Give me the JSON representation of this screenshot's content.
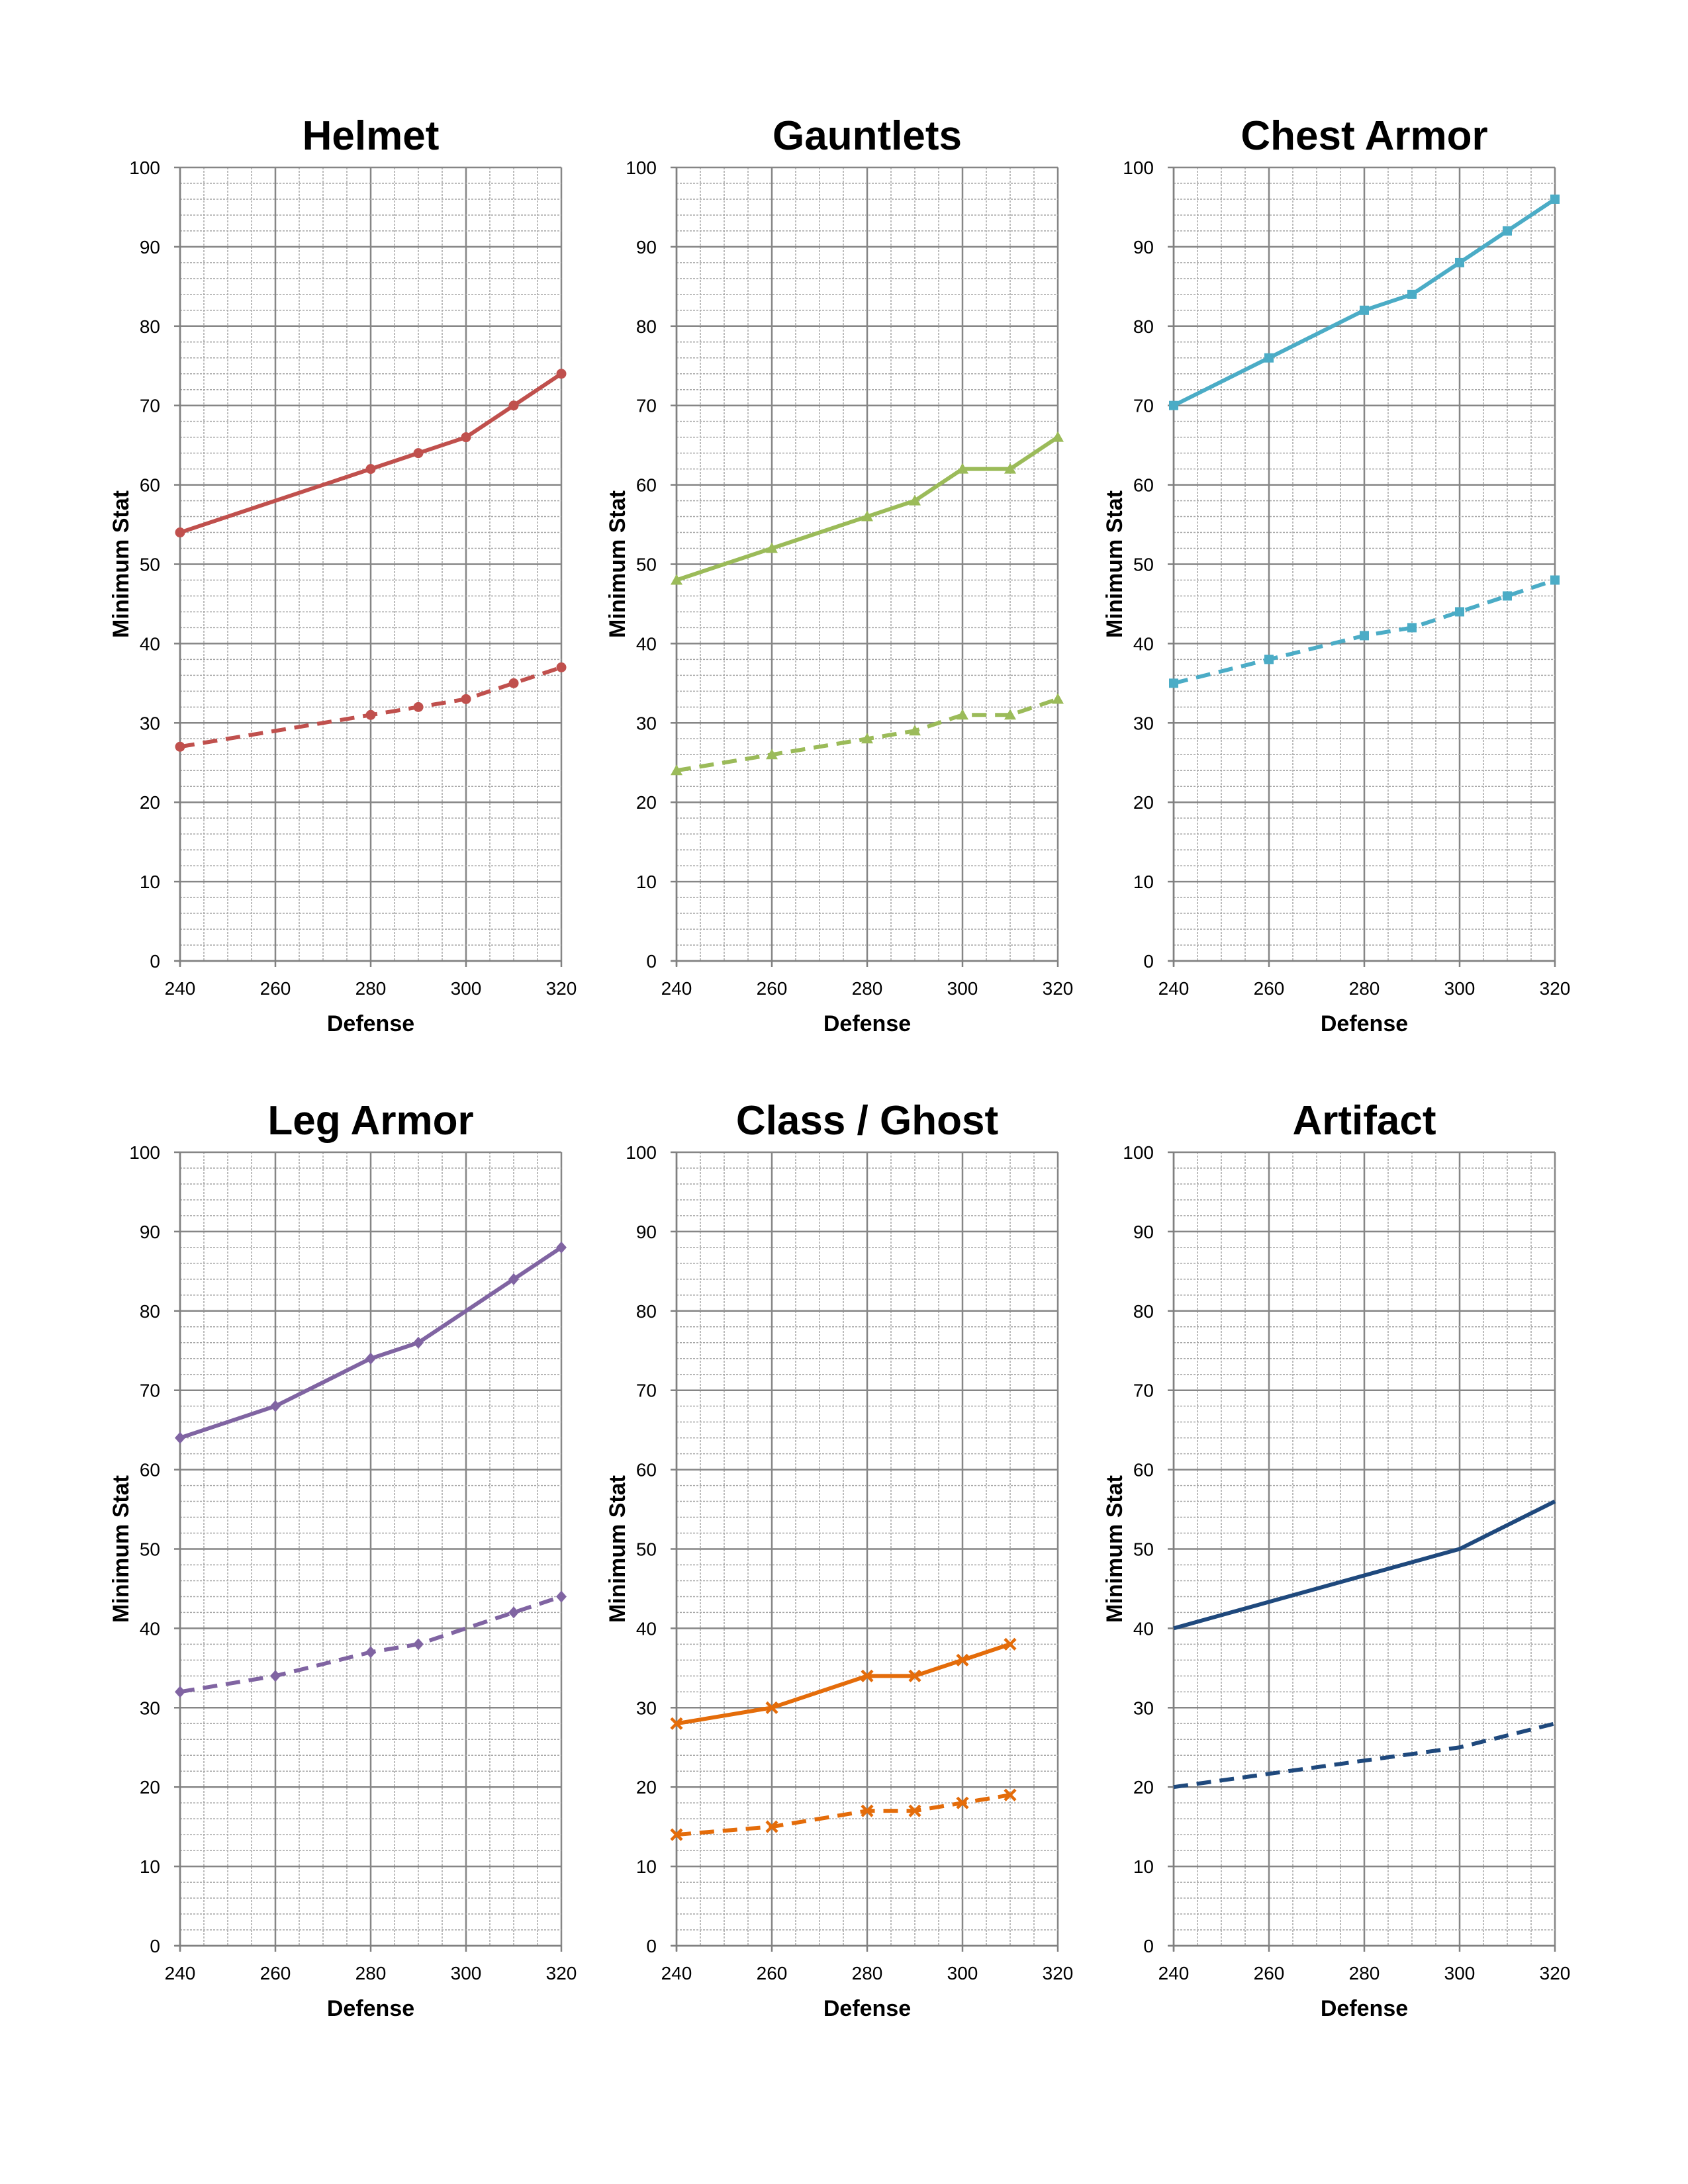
{
  "chart_data": [
    {
      "type": "line",
      "title": "Helmet",
      "xlabel": "Defense",
      "ylabel": "Minimum Stat",
      "xlim": [
        240,
        320
      ],
      "ylim": [
        0,
        100
      ],
      "xticks": [
        240,
        260,
        280,
        300,
        320
      ],
      "yticks": [
        0,
        10,
        20,
        30,
        40,
        50,
        60,
        70,
        80,
        90,
        100
      ],
      "grid": true,
      "color": "#C0504D",
      "marker": "circle",
      "series": [
        {
          "style": "solid",
          "x": [
            240,
            280,
            290,
            300,
            310,
            320
          ],
          "y": [
            54,
            62,
            64,
            66,
            70,
            74
          ]
        },
        {
          "style": "dashed",
          "x": [
            240,
            280,
            290,
            300,
            310,
            320
          ],
          "y": [
            27,
            31,
            32,
            33,
            35,
            37
          ]
        }
      ]
    },
    {
      "type": "line",
      "title": "Gauntlets",
      "xlabel": "Defense",
      "ylabel": "Minimum Stat",
      "xlim": [
        240,
        320
      ],
      "ylim": [
        0,
        100
      ],
      "xticks": [
        240,
        260,
        280,
        300,
        320
      ],
      "yticks": [
        0,
        10,
        20,
        30,
        40,
        50,
        60,
        70,
        80,
        90,
        100
      ],
      "grid": true,
      "color": "#9BBB59",
      "marker": "triangle",
      "series": [
        {
          "style": "solid",
          "x": [
            240,
            260,
            280,
            290,
            300,
            310,
            320
          ],
          "y": [
            48,
            52,
            56,
            58,
            62,
            62,
            66
          ]
        },
        {
          "style": "dashed",
          "x": [
            240,
            260,
            280,
            290,
            300,
            310,
            320
          ],
          "y": [
            24,
            26,
            28,
            29,
            31,
            31,
            33
          ]
        }
      ]
    },
    {
      "type": "line",
      "title": "Chest Armor",
      "xlabel": "Defense",
      "ylabel": "Minimum Stat",
      "xlim": [
        240,
        320
      ],
      "ylim": [
        0,
        100
      ],
      "xticks": [
        240,
        260,
        280,
        300,
        320
      ],
      "yticks": [
        0,
        10,
        20,
        30,
        40,
        50,
        60,
        70,
        80,
        90,
        100
      ],
      "grid": true,
      "color": "#4BACC6",
      "marker": "square",
      "series": [
        {
          "style": "solid",
          "x": [
            240,
            260,
            280,
            290,
            300,
            310,
            320
          ],
          "y": [
            70,
            76,
            82,
            84,
            88,
            92,
            96
          ]
        },
        {
          "style": "dashed",
          "x": [
            240,
            260,
            280,
            290,
            300,
            310,
            320
          ],
          "y": [
            35,
            38,
            41,
            42,
            44,
            46,
            48
          ]
        }
      ]
    },
    {
      "type": "line",
      "title": "Leg Armor",
      "xlabel": "Defense",
      "ylabel": "Minimum Stat",
      "xlim": [
        240,
        320
      ],
      "ylim": [
        0,
        100
      ],
      "xticks": [
        240,
        260,
        280,
        300,
        320
      ],
      "yticks": [
        0,
        10,
        20,
        30,
        40,
        50,
        60,
        70,
        80,
        90,
        100
      ],
      "grid": true,
      "color": "#8064A2",
      "marker": "diamond",
      "series": [
        {
          "style": "solid",
          "x": [
            240,
            260,
            280,
            290,
            310,
            320
          ],
          "y": [
            64,
            68,
            74,
            76,
            84,
            88
          ]
        },
        {
          "style": "dashed",
          "x": [
            240,
            260,
            280,
            290,
            310,
            320
          ],
          "y": [
            32,
            34,
            37,
            38,
            42,
            44
          ]
        }
      ]
    },
    {
      "type": "line",
      "title": "Class / Ghost",
      "xlabel": "Defense",
      "ylabel": "Minimum Stat",
      "xlim": [
        240,
        320
      ],
      "ylim": [
        0,
        100
      ],
      "xticks": [
        240,
        260,
        280,
        300,
        320
      ],
      "yticks": [
        0,
        10,
        20,
        30,
        40,
        50,
        60,
        70,
        80,
        90,
        100
      ],
      "grid": true,
      "color": "#E46C0A",
      "marker": "x",
      "series": [
        {
          "style": "solid",
          "x": [
            240,
            260,
            280,
            290,
            300,
            310
          ],
          "y": [
            28,
            30,
            34,
            34,
            36,
            38
          ]
        },
        {
          "style": "dashed",
          "x": [
            240,
            260,
            280,
            290,
            300,
            310
          ],
          "y": [
            14,
            15,
            17,
            17,
            18,
            19
          ]
        }
      ]
    },
    {
      "type": "line",
      "title": "Artifact",
      "xlabel": "Defense",
      "ylabel": "Minimum Stat",
      "xlim": [
        240,
        320
      ],
      "ylim": [
        0,
        100
      ],
      "xticks": [
        240,
        260,
        280,
        300,
        320
      ],
      "yticks": [
        0,
        10,
        20,
        30,
        40,
        50,
        60,
        70,
        80,
        90,
        100
      ],
      "grid": true,
      "color": "#1F497D",
      "marker": "none",
      "series": [
        {
          "style": "solid",
          "x": [
            240,
            300,
            320
          ],
          "y": [
            40,
            50,
            56
          ]
        },
        {
          "style": "dashed",
          "x": [
            240,
            300,
            320
          ],
          "y": [
            20,
            25,
            28
          ]
        }
      ]
    }
  ]
}
